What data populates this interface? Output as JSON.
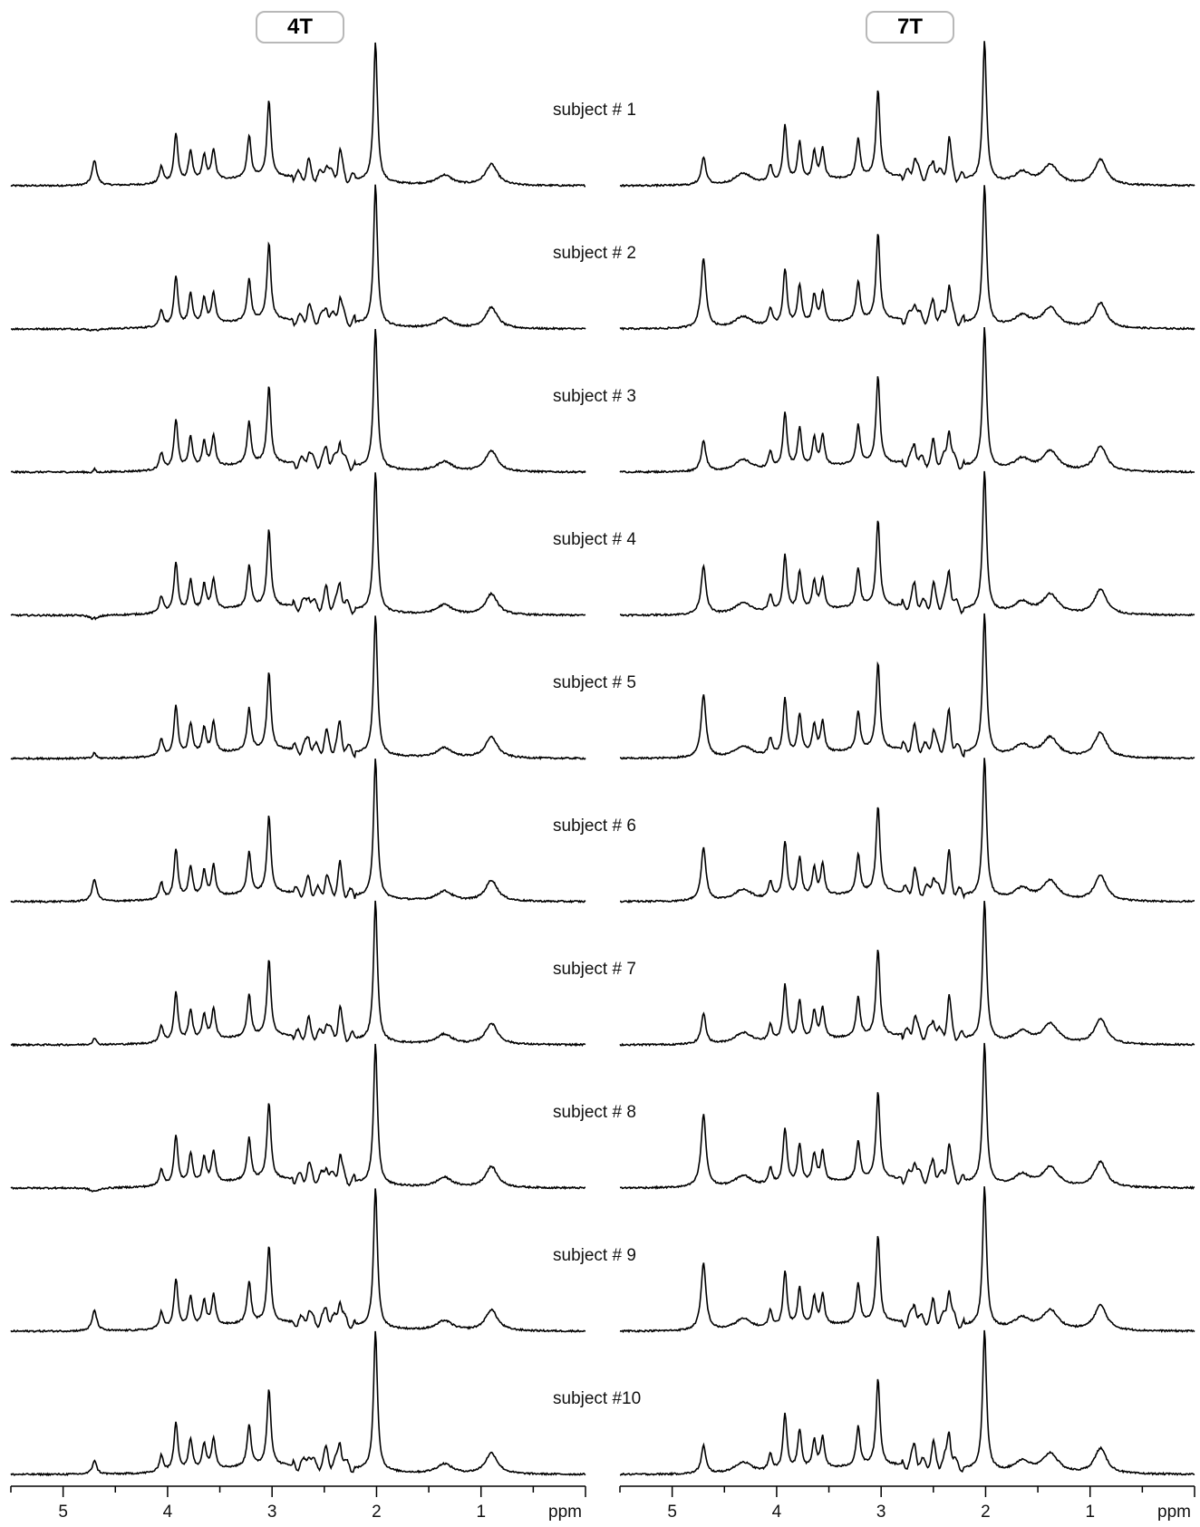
{
  "panels": [
    {
      "field": "4T"
    },
    {
      "field": "7T"
    }
  ],
  "subjects": [
    "subject # 1",
    "subject # 2",
    "subject # 3",
    "subject # 4",
    "subject # 5",
    "subject # 6",
    "subject # 7",
    "subject # 8",
    "subject # 9",
    "subject #10"
  ],
  "axis": {
    "unit": "ppm",
    "ticks": [
      "5",
      "4",
      "3",
      "2",
      "1"
    ],
    "tick_values": [
      5,
      4,
      3,
      2,
      1
    ],
    "range": [
      5.5,
      0
    ]
  },
  "chart_data": {
    "type": "line",
    "title": "",
    "xlabel": "ppm",
    "ylabel": "",
    "x_range_ppm": [
      5.5,
      0
    ],
    "x_reversed": true,
    "grid": false,
    "layout": "two columns (4T left, 7T right), 10 stacked spectra per column",
    "peaks_ppm_relative_height": {
      "4T": [
        {
          "ppm": 2.01,
          "height": 1.0
        },
        {
          "ppm": 3.03,
          "height": 0.55
        },
        {
          "ppm": 3.22,
          "height": 0.3
        },
        {
          "ppm": 3.92,
          "height": 0.35
        },
        {
          "ppm": 3.78,
          "height": 0.22
        },
        {
          "ppm": 3.65,
          "height": 0.18
        },
        {
          "ppm": 3.56,
          "height": 0.22
        },
        {
          "ppm": 4.06,
          "height": 0.12
        },
        {
          "ppm": 2.35,
          "height": 0.2
        },
        {
          "ppm": 2.48,
          "height": 0.12
        },
        {
          "ppm": 2.65,
          "height": 0.1
        },
        {
          "ppm": 0.9,
          "height": 0.15
        },
        {
          "ppm": 1.35,
          "height": 0.07
        },
        {
          "ppm": 4.7,
          "height": 0.08
        }
      ],
      "7T": [
        {
          "ppm": 2.01,
          "height": 1.0
        },
        {
          "ppm": 3.03,
          "height": 0.62
        },
        {
          "ppm": 3.22,
          "height": 0.28
        },
        {
          "ppm": 3.92,
          "height": 0.4
        },
        {
          "ppm": 3.78,
          "height": 0.28
        },
        {
          "ppm": 3.64,
          "height": 0.2
        },
        {
          "ppm": 3.56,
          "height": 0.22
        },
        {
          "ppm": 4.06,
          "height": 0.12
        },
        {
          "ppm": 2.35,
          "height": 0.28
        },
        {
          "ppm": 2.68,
          "height": 0.15
        },
        {
          "ppm": 2.5,
          "height": 0.14
        },
        {
          "ppm": 0.9,
          "height": 0.18
        },
        {
          "ppm": 1.38,
          "height": 0.14
        },
        {
          "ppm": 1.65,
          "height": 0.08
        },
        {
          "ppm": 4.32,
          "height": 0.08
        },
        {
          "ppm": 4.7,
          "height": 0.1
        }
      ]
    },
    "water_residual_ppm_4.70": {
      "4T": [
        0.1,
        -0.08,
        -0.06,
        -0.1,
        -0.04,
        0.08,
        -0.03,
        -0.1,
        0.07,
        0.02
      ],
      "7T": [
        0.1,
        0.4,
        0.12,
        0.25,
        0.35,
        0.28,
        0.12,
        0.42,
        0.38,
        0.1
      ]
    }
  }
}
